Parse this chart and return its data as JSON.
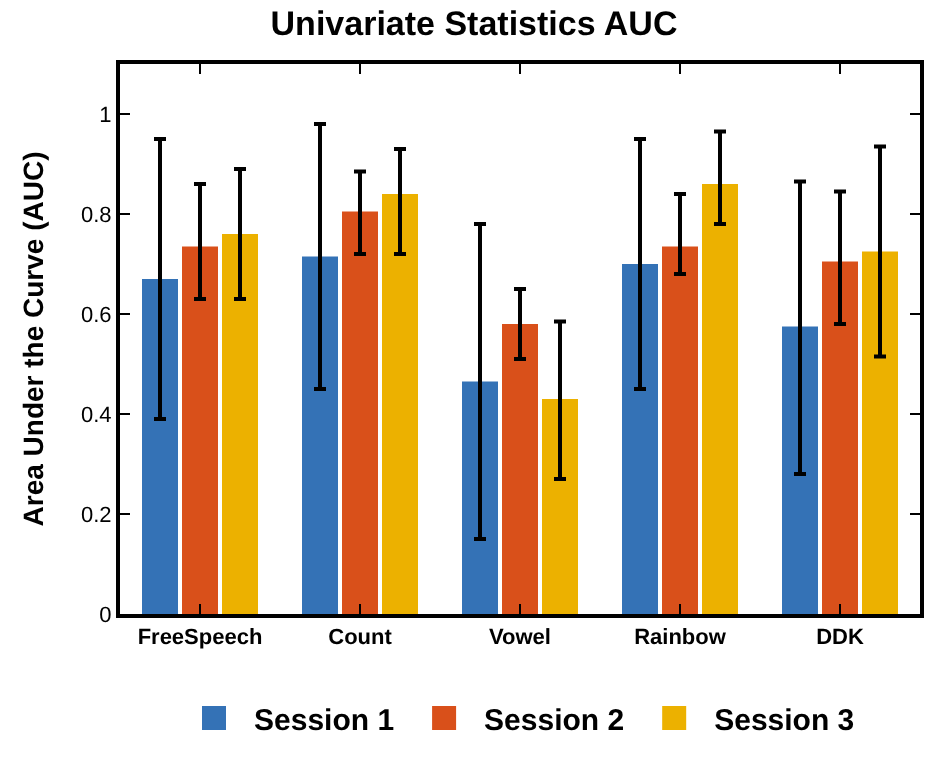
{
  "chart_data": {
    "type": "bar",
    "title": "Univariate Statistics AUC",
    "ylabel": "Area Under the Curve (AUC)",
    "categories": [
      "FreeSpeech",
      "Count",
      "Vowel",
      "Rainbow",
      "DDK"
    ],
    "series": [
      {
        "name": "Session 1",
        "color": "#3472b6",
        "values": [
          0.67,
          0.715,
          0.465,
          0.7,
          0.575
        ],
        "errors": [
          [
            0.39,
            0.95
          ],
          [
            0.45,
            0.98
          ],
          [
            0.15,
            0.78
          ],
          [
            0.45,
            0.95
          ],
          [
            0.28,
            0.865
          ]
        ]
      },
      {
        "name": "Session 2",
        "color": "#d9501a",
        "values": [
          0.735,
          0.805,
          0.58,
          0.735,
          0.705
        ],
        "errors": [
          [
            0.63,
            0.86
          ],
          [
            0.72,
            0.885
          ],
          [
            0.51,
            0.65
          ],
          [
            0.68,
            0.84
          ],
          [
            0.58,
            0.845
          ]
        ]
      },
      {
        "name": "Session 3",
        "color": "#ecb100",
        "values": [
          0.76,
          0.84,
          0.43,
          0.86,
          0.725
        ],
        "errors": [
          [
            0.63,
            0.89
          ],
          [
            0.72,
            0.93
          ],
          [
            0.27,
            0.585
          ],
          [
            0.78,
            0.965
          ],
          [
            0.515,
            0.935
          ]
        ]
      }
    ],
    "ylim": [
      0,
      1.1
    ],
    "yticks": [
      0,
      0.2,
      0.4,
      0.6,
      0.8,
      1
    ],
    "legend": "bottom"
  }
}
